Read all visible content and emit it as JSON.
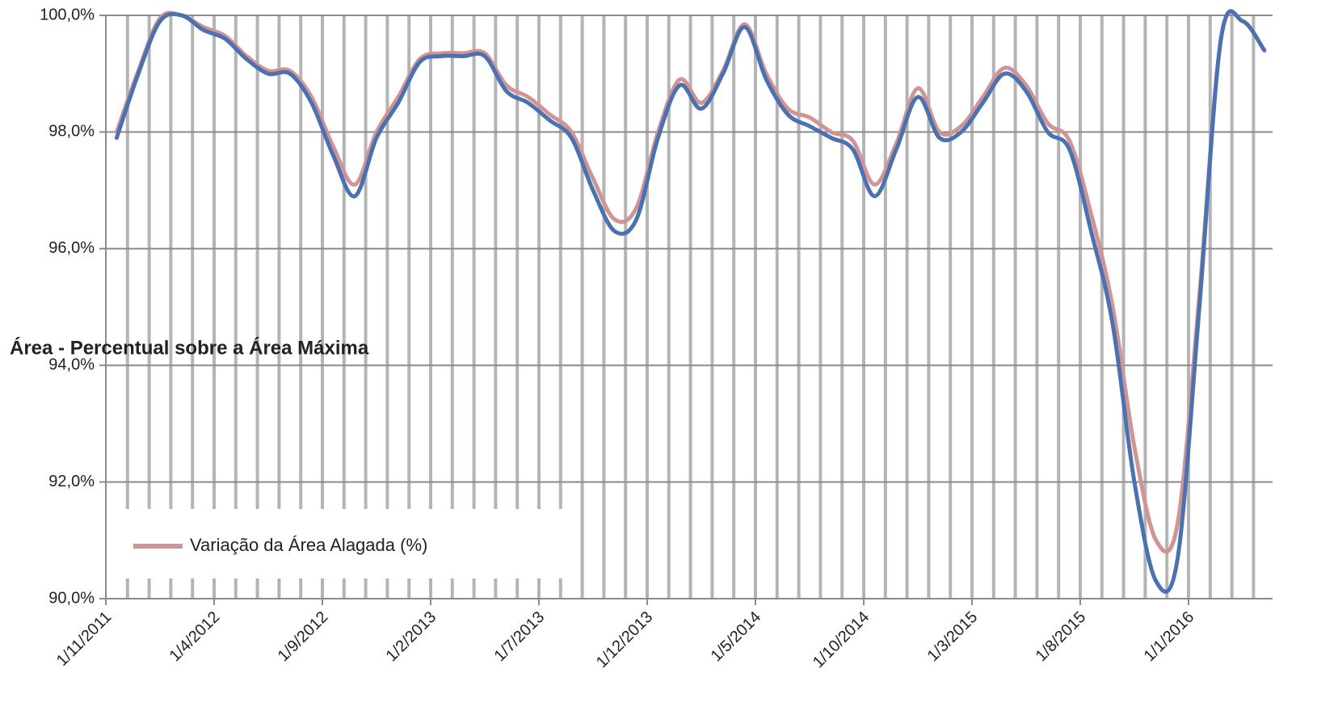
{
  "chart_data": {
    "type": "line",
    "y_label": "Área - Percentual sobre a Área Máxima",
    "categories": [
      "1/11/2011",
      null,
      null,
      null,
      null,
      "1/4/2012",
      null,
      null,
      null,
      null,
      "1/9/2012",
      null,
      null,
      null,
      null,
      "1/2/2013",
      null,
      null,
      null,
      null,
      "1/7/2013",
      null,
      null,
      null,
      null,
      "1/12/2013",
      null,
      null,
      null,
      null,
      "1/5/2014",
      null,
      null,
      null,
      null,
      "1/10/2014",
      null,
      null,
      null,
      null,
      "1/3/2015",
      null,
      null,
      null,
      null,
      "1/8/2015",
      null,
      null,
      null,
      null,
      "1/1/2016",
      null,
      null,
      null
    ],
    "series": [
      {
        "name": "Variação da Área Alagada (%)",
        "color": "#d09494",
        "values": [
          98.0,
          99.05,
          99.95,
          100.0,
          99.8,
          99.65,
          99.3,
          99.05,
          99.05,
          98.6,
          97.75,
          97.1,
          98.0,
          98.6,
          99.25,
          99.35,
          99.35,
          99.35,
          98.8,
          98.6,
          98.3,
          98.0,
          97.2,
          96.5,
          96.7,
          98.0,
          98.9,
          98.5,
          99.05,
          99.85,
          99.0,
          98.4,
          98.25,
          98.0,
          97.85,
          97.1,
          97.8,
          98.75,
          98.0,
          98.1,
          98.6,
          99.1,
          98.8,
          98.15,
          97.85,
          96.6,
          95.0,
          92.6,
          91.0,
          91.3,
          95.2,
          99.6,
          99.9,
          99.4
        ]
      },
      {
        "color": "#4a72b0",
        "values": [
          97.9,
          99.0,
          99.9,
          100.0,
          99.75,
          99.6,
          99.25,
          99.0,
          99.0,
          98.5,
          97.6,
          96.9,
          97.9,
          98.5,
          99.2,
          99.3,
          99.3,
          99.3,
          98.7,
          98.5,
          98.2,
          97.9,
          97.0,
          96.3,
          96.5,
          97.9,
          98.8,
          98.4,
          99.0,
          99.8,
          98.9,
          98.3,
          98.1,
          97.9,
          97.7,
          96.9,
          97.7,
          98.6,
          97.9,
          98.0,
          98.5,
          99.0,
          98.7,
          98.0,
          97.7,
          96.3,
          94.7,
          92.0,
          90.3,
          90.7,
          95.0,
          99.6,
          99.9,
          99.4
        ]
      }
    ],
    "ylim": [
      90,
      100
    ],
    "yticks": [
      {
        "value": 90,
        "label": "90,0%"
      },
      {
        "value": 92,
        "label": "92,0%"
      },
      {
        "value": 94,
        "label": "94,0%"
      },
      {
        "value": 96,
        "label": "96,0%"
      },
      {
        "value": 98,
        "label": "98,0%"
      },
      {
        "value": 100,
        "label": "100,0%"
      }
    ],
    "grid": true
  }
}
